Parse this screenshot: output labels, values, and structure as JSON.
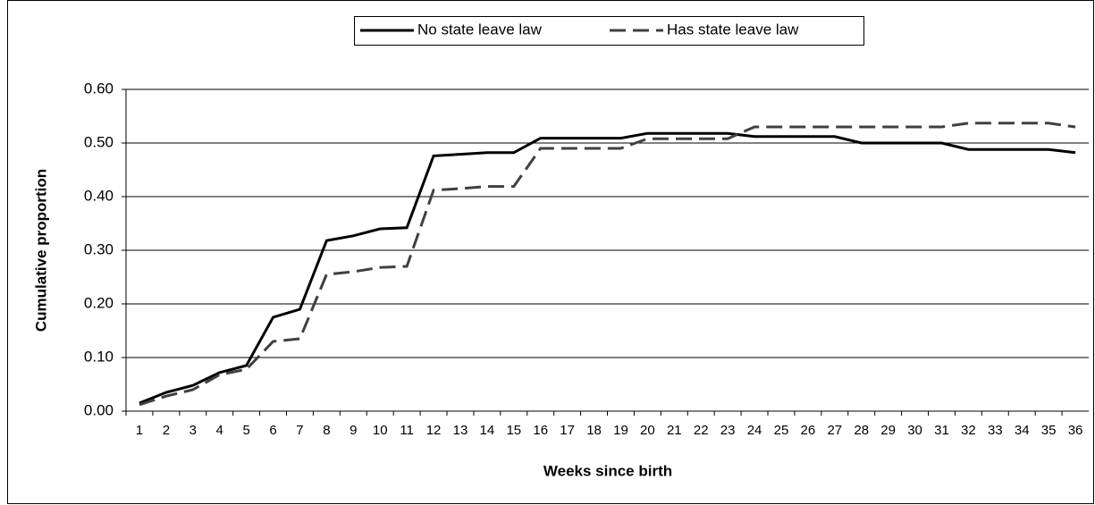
{
  "chart_data": {
    "type": "line",
    "xlabel": "Weeks since birth",
    "ylabel": "Cumulative proportion",
    "categories": [
      "1",
      "2",
      "3",
      "4",
      "5",
      "6",
      "7",
      "8",
      "9",
      "10",
      "11",
      "12",
      "13",
      "14",
      "15",
      "16",
      "17",
      "18",
      "19",
      "20",
      "21",
      "22",
      "23",
      "24",
      "25",
      "26",
      "27",
      "28",
      "29",
      "30",
      "31",
      "32",
      "33",
      "34",
      "35",
      "36"
    ],
    "series": [
      {
        "name": "No state leave law",
        "color": "#000000",
        "linestyle": "solid",
        "values": [
          0.015,
          0.035,
          0.048,
          0.072,
          0.085,
          0.175,
          0.19,
          0.318,
          0.327,
          0.34,
          0.342,
          0.476,
          0.479,
          0.482,
          0.482,
          0.509,
          0.509,
          0.509,
          0.509,
          0.518,
          0.518,
          0.518,
          0.518,
          0.512,
          0.512,
          0.512,
          0.512,
          0.5,
          0.5,
          0.5,
          0.5,
          0.488,
          0.488,
          0.488,
          0.488,
          0.482
        ]
      },
      {
        "name": "Has state leave law",
        "color": "#404040",
        "linestyle": "dashed",
        "values": [
          0.012,
          0.028,
          0.04,
          0.068,
          0.078,
          0.13,
          0.135,
          0.255,
          0.26,
          0.268,
          0.27,
          0.412,
          0.415,
          0.419,
          0.419,
          0.49,
          0.49,
          0.49,
          0.49,
          0.508,
          0.508,
          0.508,
          0.508,
          0.53,
          0.53,
          0.53,
          0.53,
          0.53,
          0.53,
          0.53,
          0.53,
          0.537,
          0.537,
          0.537,
          0.537,
          0.53
        ]
      }
    ],
    "ylim": [
      0,
      0.6
    ],
    "yticks": [
      {
        "value": 0,
        "label": "0.00"
      },
      {
        "value": 0.1,
        "label": "0.10"
      },
      {
        "value": 0.2,
        "label": "0.20"
      },
      {
        "value": 0.3,
        "label": "0.30"
      },
      {
        "value": 0.4,
        "label": "0.40"
      },
      {
        "value": 0.5,
        "label": "0.50"
      },
      {
        "value": 0.6,
        "label": "0.60"
      }
    ],
    "grid": true,
    "legend": "top"
  }
}
